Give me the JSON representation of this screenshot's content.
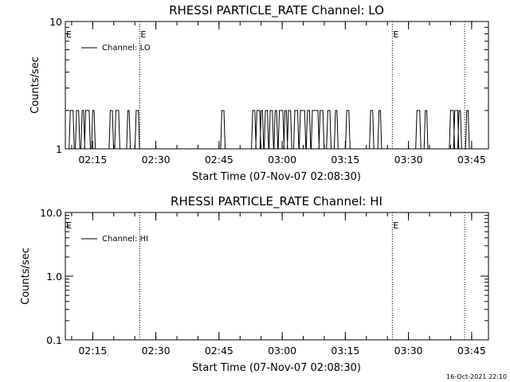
{
  "footer": {
    "timestamp": "16-Oct-2021 22:10"
  },
  "chart_data": [
    {
      "type": "line",
      "title": "RHESSI PARTICLE_RATE Channel: LO",
      "xlabel": "Start Time (07-Nov-07 02:08:30)",
      "ylabel": "Counts/sec",
      "yscale": "log",
      "ylim": [
        1,
        10
      ],
      "y_tick_labels": [
        "1",
        "10"
      ],
      "xlim": [
        "02:08:30",
        "03:49:00"
      ],
      "x_tick_labels": [
        "02:15",
        "02:30",
        "02:45",
        "03:00",
        "03:15",
        "03:30",
        "03:45"
      ],
      "legend": {
        "position": "top-left",
        "entries": [
          "Channel: LO"
        ]
      },
      "markers": [
        {
          "time": "02:26:10",
          "label": "E"
        },
        {
          "time": "03:26:10",
          "label": "E"
        },
        {
          "time": "03:43:20",
          "label": ""
        }
      ],
      "series": [
        {
          "name": "Channel: LO",
          "baseline": 1,
          "peak": 2,
          "bursts": [
            [
              "02:09:40",
              "02:10:20"
            ],
            [
              "02:11:10",
              "02:11:40"
            ],
            [
              "02:12:30",
              "02:12:50"
            ],
            [
              "02:13:20",
              "02:14:10"
            ],
            [
              "02:15:00",
              "02:15:20"
            ],
            [
              "02:19:10",
              "02:19:40"
            ],
            [
              "02:20:30",
              "02:21:10"
            ],
            [
              "02:23:20",
              "02:23:40"
            ],
            [
              "02:25:20",
              "02:25:50"
            ],
            [
              "02:45:40",
              "02:46:10"
            ],
            [
              "02:53:00",
              "02:53:30"
            ],
            [
              "02:54:00",
              "02:54:40"
            ],
            [
              "02:55:00",
              "02:55:20"
            ],
            [
              "02:56:00",
              "02:56:30"
            ],
            [
              "02:57:10",
              "02:57:40"
            ],
            [
              "02:58:20",
              "02:58:40"
            ],
            [
              "02:59:20",
              "03:00:10"
            ],
            [
              "03:00:40",
              "03:01:00"
            ],
            [
              "03:01:30",
              "03:02:00"
            ],
            [
              "03:03:00",
              "03:03:40"
            ],
            [
              "03:04:20",
              "03:05:20"
            ],
            [
              "03:06:00",
              "03:06:30"
            ],
            [
              "03:07:10",
              "03:08:30"
            ],
            [
              "03:09:00",
              "03:09:40"
            ],
            [
              "03:10:50",
              "03:11:20"
            ],
            [
              "03:12:40",
              "03:13:00"
            ],
            [
              "03:15:20",
              "03:15:50"
            ],
            [
              "03:21:00",
              "03:21:30"
            ],
            [
              "03:23:00",
              "03:23:20"
            ],
            [
              "03:32:00",
              "03:32:40"
            ],
            [
              "03:34:00",
              "03:34:20"
            ],
            [
              "03:40:00",
              "03:40:40"
            ],
            [
              "03:41:00",
              "03:41:40"
            ],
            [
              "03:42:00",
              "03:42:20"
            ],
            [
              "03:43:50",
              "03:44:10"
            ]
          ]
        }
      ]
    },
    {
      "type": "line",
      "title": "RHESSI PARTICLE_RATE Channel: HI",
      "xlabel": "Start Time (07-Nov-07 02:08:30)",
      "ylabel": "Counts/sec",
      "yscale": "log",
      "ylim": [
        0.1,
        10
      ],
      "y_tick_labels": [
        "0.1",
        "1.0",
        "10.0"
      ],
      "xlim": [
        "02:08:30",
        "03:49:00"
      ],
      "x_tick_labels": [
        "02:15",
        "02:30",
        "02:45",
        "03:00",
        "03:15",
        "03:30",
        "03:45"
      ],
      "legend": {
        "position": "top-left",
        "entries": [
          "Channel: HI"
        ]
      },
      "markers": [
        {
          "time": "02:26:10",
          "label": ""
        },
        {
          "time": "03:26:10",
          "label": "E"
        },
        {
          "time": "03:43:20",
          "label": ""
        }
      ],
      "series": [
        {
          "name": "Channel: HI",
          "baseline": null,
          "peak": null,
          "bursts": []
        }
      ]
    }
  ]
}
